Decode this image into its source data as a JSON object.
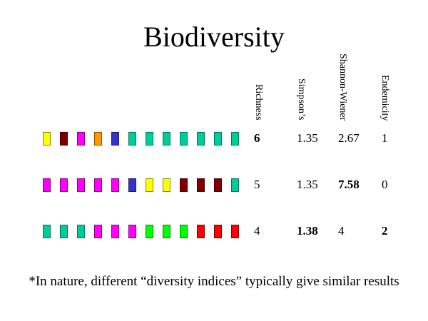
{
  "title": "Biodiversity",
  "headers": [
    "Richness",
    "Simpson’s",
    "Shannon-Wiener",
    "Endemicity"
  ],
  "colors": {
    "yellow": {
      "fill": "#ffff00",
      "border": "#8a8a00"
    },
    "maroon": {
      "fill": "#800000",
      "border": "#4a0000"
    },
    "magenta": {
      "fill": "#ff00ff",
      "border": "#8a008a"
    },
    "orange": {
      "fill": "#ff9900",
      "border": "#8a5200"
    },
    "blue": {
      "fill": "#3333cc",
      "border": "#1a1a70"
    },
    "teal": {
      "fill": "#00cc99",
      "border": "#007a5a"
    },
    "green": {
      "fill": "#00ff00",
      "border": "#008a00"
    },
    "red": {
      "fill": "#ff0000",
      "border": "#8a0000"
    }
  },
  "communities": [
    {
      "species": [
        "yellow",
        "maroon",
        "magenta",
        "orange",
        "blue",
        "teal",
        "teal",
        "teal",
        "teal",
        "teal",
        "teal",
        "teal"
      ],
      "values": [
        {
          "text": "6",
          "bold": true
        },
        {
          "text": "1.35",
          "bold": false
        },
        {
          "text": "2.67",
          "bold": false
        },
        {
          "text": "1",
          "bold": false
        }
      ]
    },
    {
      "species": [
        "magenta",
        "magenta",
        "magenta",
        "magenta",
        "magenta",
        "blue",
        "yellow",
        "yellow",
        "maroon",
        "maroon",
        "maroon",
        "teal"
      ],
      "values": [
        {
          "text": "5",
          "bold": false
        },
        {
          "text": "1.35",
          "bold": false
        },
        {
          "text": "7.58",
          "bold": true
        },
        {
          "text": "0",
          "bold": false
        }
      ]
    },
    {
      "species": [
        "teal",
        "teal",
        "teal",
        "magenta",
        "magenta",
        "magenta",
        "green",
        "green",
        "green",
        "red",
        "red",
        "red"
      ],
      "values": [
        {
          "text": "4",
          "bold": false
        },
        {
          "text": "1.38",
          "bold": true
        },
        {
          "text": "4",
          "bold": false
        },
        {
          "text": "2",
          "bold": true
        }
      ]
    }
  ],
  "footnote": "*In nature, different “diversity indices” typically give similar results"
}
